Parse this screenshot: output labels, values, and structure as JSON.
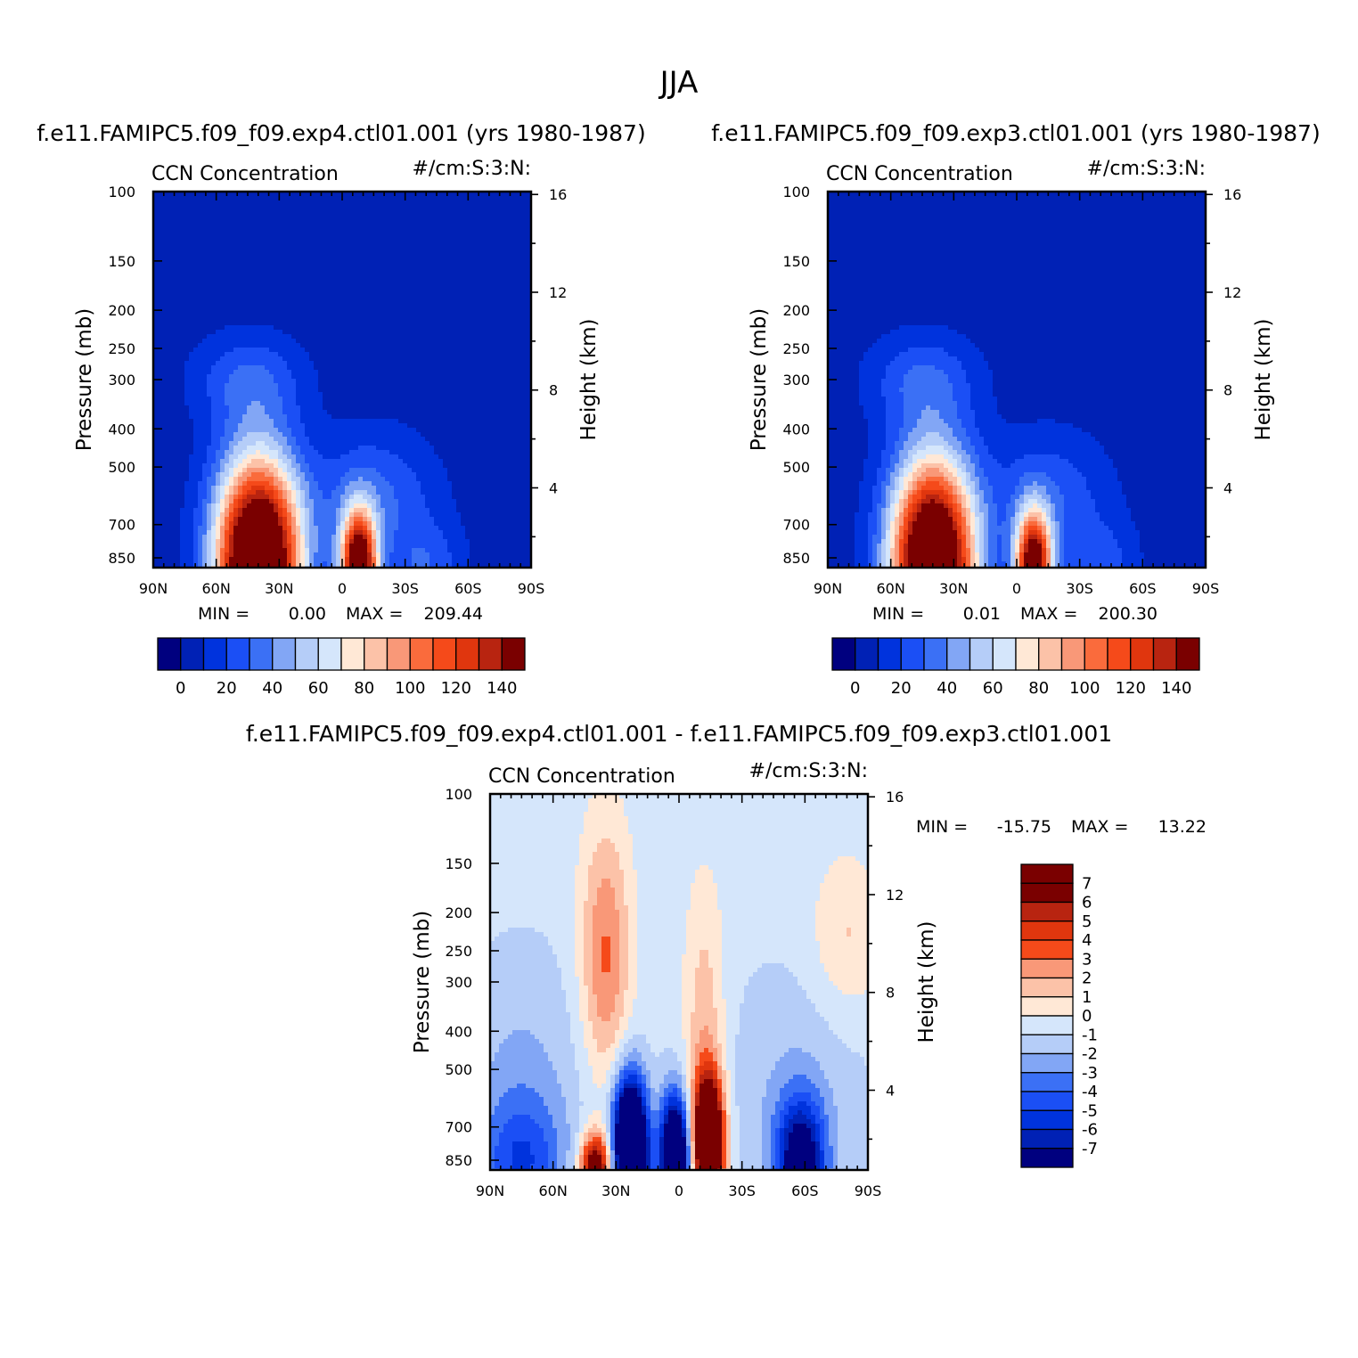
{
  "figure_title": "JJA",
  "chart_data": [
    {
      "type": "heatmap",
      "id": "panel_exp4",
      "title": "f.e11.FAMIPC5.f09_f09.exp4.ctl01.001 (yrs 1980-1987)",
      "left_subtitle": "CCN Concentration",
      "right_subtitle": "#/cm:S:3:N:",
      "ylabel": "Pressure (mb)",
      "y2label": "Height (km)",
      "x_ticks": [
        "90N",
        "60N",
        "30N",
        "0",
        "30S",
        "60S",
        "90S"
      ],
      "y_ticks": [
        "100",
        "150",
        "200",
        "250",
        "300",
        "400",
        "500",
        "700",
        "850"
      ],
      "y2_ticks": [
        "16",
        "12",
        "8",
        "4"
      ],
      "xlim": [
        90,
        -90
      ],
      "ylim_mb": [
        100,
        900
      ],
      "min_label": "MIN =",
      "min_value": "0.00",
      "max_label": "MAX =",
      "max_value": "209.44",
      "colorbar_labels": [
        "0",
        "20",
        "40",
        "60",
        "80",
        "100",
        "120",
        "140"
      ],
      "colorbar_colors": [
        "#00007f",
        "#0021b5",
        "#0033dd",
        "#1b4ff5",
        "#3b70f5",
        "#82a6f5",
        "#b5cdf8",
        "#d5e6fb",
        "#ffe8d6",
        "#fcc2a8",
        "#f99878",
        "#fa6b3c",
        "#f54a1a",
        "#e0360e",
        "#b82410",
        "#7a0000"
      ],
      "plumes": [
        {
          "lat": 40,
          "p": 900,
          "vmax": 209.4,
          "sx": 14,
          "sy": 1.55
        },
        {
          "lat": -8,
          "p": 900,
          "vmax": 170,
          "sx": 6,
          "sy": 1.25
        },
        {
          "lat": 45,
          "p": 300,
          "vmax": 23,
          "sx": 18,
          "sy": 1.2
        },
        {
          "lat": -15,
          "p": 600,
          "vmax": 28,
          "sx": 20,
          "sy": 1.3
        },
        {
          "lat": -40,
          "p": 900,
          "vmax": 22,
          "sx": 12,
          "sy": 1.2
        }
      ]
    },
    {
      "type": "heatmap",
      "id": "panel_exp3",
      "title": "f.e11.FAMIPC5.f09_f09.exp3.ctl01.001 (yrs 1980-1987)",
      "left_subtitle": "CCN Concentration",
      "right_subtitle": "#/cm:S:3:N:",
      "ylabel": "Pressure (mb)",
      "y2label": "Height (km)",
      "x_ticks": [
        "90N",
        "60N",
        "30N",
        "0",
        "30S",
        "60S",
        "90S"
      ],
      "y_ticks": [
        "100",
        "150",
        "200",
        "250",
        "300",
        "400",
        "500",
        "700",
        "850"
      ],
      "y2_ticks": [
        "16",
        "12",
        "8",
        "4"
      ],
      "xlim": [
        90,
        -90
      ],
      "ylim_mb": [
        100,
        900
      ],
      "min_label": "MIN =",
      "min_value": "0.01",
      "max_label": "MAX =",
      "max_value": "200.30",
      "colorbar_labels": [
        "0",
        "20",
        "40",
        "60",
        "80",
        "100",
        "120",
        "140"
      ],
      "colorbar_colors": [
        "#00007f",
        "#0021b5",
        "#0033dd",
        "#1b4ff5",
        "#3b70f5",
        "#82a6f5",
        "#b5cdf8",
        "#d5e6fb",
        "#ffe8d6",
        "#fcc2a8",
        "#f99878",
        "#fa6b3c",
        "#f54a1a",
        "#e0360e",
        "#b82410",
        "#7a0000"
      ],
      "plumes": [
        {
          "lat": 40,
          "p": 900,
          "vmax": 200.3,
          "sx": 14,
          "sy": 1.55
        },
        {
          "lat": -8,
          "p": 900,
          "vmax": 160,
          "sx": 6,
          "sy": 1.25
        },
        {
          "lat": 45,
          "p": 300,
          "vmax": 23,
          "sx": 18,
          "sy": 1.2
        },
        {
          "lat": -15,
          "p": 600,
          "vmax": 24,
          "sx": 20,
          "sy": 1.3
        },
        {
          "lat": -40,
          "p": 900,
          "vmax": 20,
          "sx": 12,
          "sy": 1.2
        }
      ]
    },
    {
      "type": "heatmap",
      "id": "panel_diff",
      "title": "f.e11.FAMIPC5.f09_f09.exp4.ctl01.001 - f.e11.FAMIPC5.f09_f09.exp3.ctl01.001",
      "left_subtitle": "CCN Concentration",
      "right_subtitle": "#/cm:S:3:N:",
      "ylabel": "Pressure (mb)",
      "y2label": "Height (km)",
      "x_ticks": [
        "90N",
        "60N",
        "30N",
        "0",
        "30S",
        "60S",
        "90S"
      ],
      "y_ticks": [
        "100",
        "150",
        "200",
        "250",
        "300",
        "400",
        "500",
        "700",
        "850"
      ],
      "y2_ticks": [
        "16",
        "12",
        "8",
        "4"
      ],
      "xlim": [
        90,
        -90
      ],
      "ylim_mb": [
        100,
        900
      ],
      "min_label": "MIN =",
      "min_value": "-15.75",
      "max_label": "MAX =",
      "max_value": "13.22",
      "colorbar_labels": [
        "7",
        "6",
        "5",
        "4",
        "3",
        "2",
        "1",
        "0",
        "-1",
        "-2",
        "-3",
        "-4",
        "-5",
        "-6",
        "-7"
      ],
      "colorbar_colors": [
        "#7a0000",
        "#b82410",
        "#e0360e",
        "#f54a1a",
        "#f99878",
        "#fcc2a8",
        "#ffe8d6",
        "#d5e6fb",
        "#b5cdf8",
        "#82a6f5",
        "#3b70f5",
        "#1b4ff5",
        "#0033dd",
        "#0021b5",
        "#00007f"
      ],
      "levels": [
        -7,
        -6,
        -5,
        -4,
        -3,
        -2,
        -1,
        0,
        1,
        2,
        3,
        4,
        5,
        6,
        7
      ],
      "features": [
        {
          "lat": 75,
          "p": 870,
          "amp": -3.5,
          "sx": 14,
          "sy": 1.3
        },
        {
          "lat": 40,
          "p": 890,
          "amp": 9,
          "sx": 5,
          "sy": 1.15
        },
        {
          "lat": 28,
          "p": 700,
          "amp": -3,
          "sx": 4,
          "sy": 1.25
        },
        {
          "lat": 22,
          "p": 840,
          "amp": -15.75,
          "sx": 5,
          "sy": 1.35
        },
        {
          "lat": 2,
          "p": 860,
          "amp": -13,
          "sx": 5,
          "sy": 1.3
        },
        {
          "lat": -14,
          "p": 760,
          "amp": 13.22,
          "sx": 5,
          "sy": 1.3
        },
        {
          "lat": -12,
          "p": 420,
          "amp": 2.4,
          "sx": 7,
          "sy": 1.9
        },
        {
          "lat": 35,
          "p": 300,
          "amp": 2.8,
          "sx": 8,
          "sy": 1.55
        },
        {
          "lat": 35,
          "p": 180,
          "amp": 1.6,
          "sx": 9,
          "sy": 1.6
        },
        {
          "lat": -58,
          "p": 870,
          "amp": -8,
          "sx": 8,
          "sy": 1.3
        },
        {
          "lat": -80,
          "p": 230,
          "amp": 1.8,
          "sx": 12,
          "sy": 1.4
        },
        {
          "lat": -55,
          "p": 600,
          "amp": -1.3,
          "sx": 25,
          "sy": 1.7
        },
        {
          "lat": 75,
          "p": 550,
          "amp": -1.6,
          "sx": 20,
          "sy": 1.7
        }
      ]
    }
  ]
}
